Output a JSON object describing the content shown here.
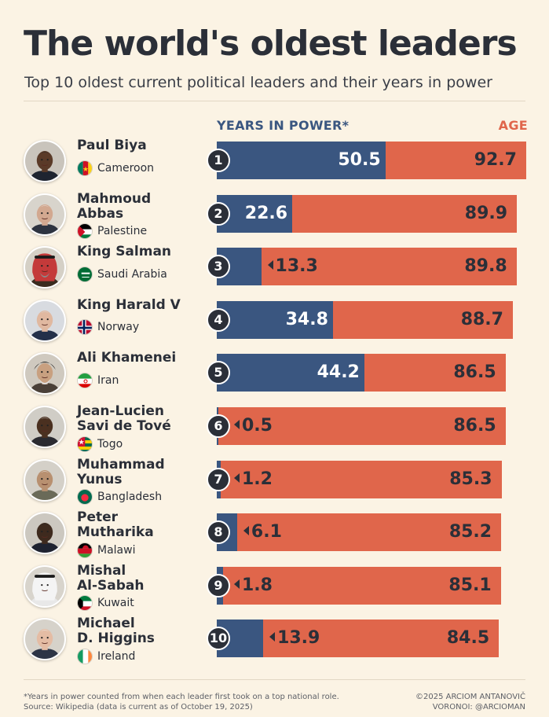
{
  "title": "The world's oldest leaders",
  "subtitle": "Top 10 oldest current political leaders and their years in power",
  "headers": {
    "years": "YEARS IN POWER*",
    "age": "AGE"
  },
  "colors": {
    "years": "#3a5680",
    "age": "#e0664b",
    "background": "#fbf3e4",
    "text": "#2b2f38"
  },
  "chart_data": {
    "type": "bar",
    "orientation": "horizontal",
    "categories": [
      "Paul Biya",
      "Mahmoud Abbas",
      "King Salman",
      "King Harald V",
      "Ali Khamenei",
      "Jean-Lucien Savi de Tové",
      "Muhammad Yunus",
      "Peter Mutharika",
      "Mishal Al-Sabah",
      "Michael D. Higgins"
    ],
    "series": [
      {
        "name": "YEARS IN POWER*",
        "values": [
          50.5,
          22.6,
          13.3,
          34.8,
          44.2,
          0.5,
          1.2,
          6.1,
          1.8,
          13.9
        ]
      },
      {
        "name": "AGE",
        "values": [
          92.7,
          89.9,
          89.8,
          88.7,
          86.5,
          86.5,
          85.3,
          85.2,
          85.1,
          84.5
        ]
      }
    ]
  },
  "leaders": [
    {
      "rank": "1",
      "name": "Paul Biya",
      "country": "Cameroon",
      "flag": "cameroon-flag-icon",
      "portrait": "paul-biya-portrait"
    },
    {
      "rank": "2",
      "name": "Mahmoud\nAbbas",
      "country": "Palestine",
      "flag": "palestine-flag-icon",
      "portrait": "mahmoud-abbas-portrait"
    },
    {
      "rank": "3",
      "name": "King Salman",
      "country": "Saudi Arabia",
      "flag": "saudi-arabia-flag-icon",
      "portrait": "king-salman-portrait"
    },
    {
      "rank": "4",
      "name": "King Harald V",
      "country": "Norway",
      "flag": "norway-flag-icon",
      "portrait": "king-harald-portrait"
    },
    {
      "rank": "5",
      "name": "Ali Khamenei",
      "country": "Iran",
      "flag": "iran-flag-icon",
      "portrait": "ali-khamenei-portrait"
    },
    {
      "rank": "6",
      "name": "Jean-Lucien\nSavi de Tové",
      "country": "Togo",
      "flag": "togo-flag-icon",
      "portrait": "savi-de-tove-portrait"
    },
    {
      "rank": "7",
      "name": "Muhammad\nYunus",
      "country": "Bangladesh",
      "flag": "bangladesh-flag-icon",
      "portrait": "muhammad-yunus-portrait"
    },
    {
      "rank": "8",
      "name": "Peter\nMutharika",
      "country": "Malawi",
      "flag": "malawi-flag-icon",
      "portrait": "peter-mutharika-portrait"
    },
    {
      "rank": "9",
      "name": "Mishal\nAl-Sabah",
      "country": "Kuwait",
      "flag": "kuwait-flag-icon",
      "portrait": "mishal-al-sabah-portrait"
    },
    {
      "rank": "10",
      "name": "Michael\nD. Higgins",
      "country": "Ireland",
      "flag": "ireland-flag-icon",
      "portrait": "michael-higgins-portrait"
    }
  ],
  "footnote": {
    "line1": "*Years in power counted from when each leader first took on a top national role.",
    "line2": "Source: Wikipedia (data is current as of October 19, 2025)"
  },
  "credit": {
    "line1": "©2025 ARCIOM ANTANOVIČ",
    "line2": "VORONOI: @ARCIOMAN"
  }
}
